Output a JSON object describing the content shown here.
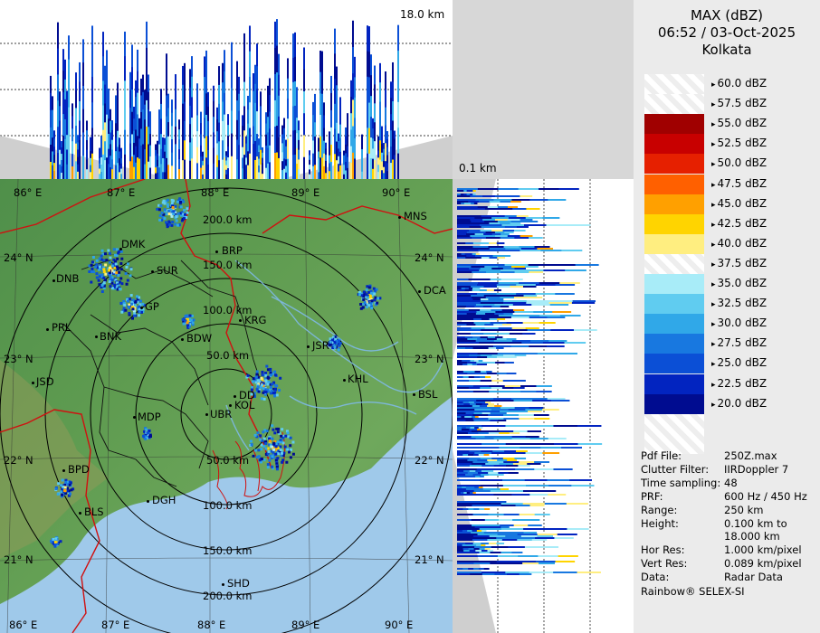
{
  "header": {
    "product": "MAX (dBZ)",
    "datetime": "06:52 / 03-Oct-2025",
    "station": "Kolkata"
  },
  "top_panel": {
    "height_label_top": "18.0 km",
    "height_label_bottom": "0.1 km"
  },
  "legend": [
    {
      "label": "60.0 dBZ",
      "color": "#f0f0f0"
    },
    {
      "label": "57.5 dBZ",
      "color": "#f5f5f5"
    },
    {
      "label": "55.0 dBZ",
      "color": "#a00000"
    },
    {
      "label": "52.5 dBZ",
      "color": "#c80000"
    },
    {
      "label": "50.0 dBZ",
      "color": "#e62000"
    },
    {
      "label": "47.5 dBZ",
      "color": "#ff6000"
    },
    {
      "label": "45.0 dBZ",
      "color": "#ffa000"
    },
    {
      "label": "42.5 dBZ",
      "color": "#ffd400"
    },
    {
      "label": "40.0 dBZ",
      "color": "#ffee80"
    },
    {
      "label": "37.5 dBZ",
      "color": "#fffde6"
    },
    {
      "label": "35.0 dBZ",
      "color": "#a8ecf8"
    },
    {
      "label": "32.5 dBZ",
      "color": "#60ccf0"
    },
    {
      "label": "30.0 dBZ",
      "color": "#30a8e8"
    },
    {
      "label": "27.5 dBZ",
      "color": "#1878e0"
    },
    {
      "label": "25.0 dBZ",
      "color": "#0b4fd6"
    },
    {
      "label": "22.5 dBZ",
      "color": "#0224c0"
    },
    {
      "label": "20.0 dBZ",
      "color": "#000c90"
    }
  ],
  "info": [
    {
      "key": "Pdf File:",
      "value": "250Z.max"
    },
    {
      "key": "Clutter Filter:",
      "value": "IIRDoppler 7"
    },
    {
      "key": "Time sampling:",
      "value": "48"
    },
    {
      "key": "PRF:",
      "value": "600 Hz / 450 Hz"
    },
    {
      "key": "Range:",
      "value": "250 km"
    },
    {
      "key": "Height:",
      "value": "0.100 km to"
    },
    {
      "key": "",
      "value": "18.000 km"
    },
    {
      "key": "Hor Res:",
      "value": "1.000 km/pixel"
    },
    {
      "key": "Vert Res:",
      "value": "0.089 km/pixel"
    },
    {
      "key": "Data:",
      "value": "Radar Data"
    }
  ],
  "footer": "Rainbow® SELEX-SI",
  "map": {
    "lon_labels_top": [
      "86° E",
      "87° E",
      "88° E",
      "89° E",
      "90° E"
    ],
    "lon_labels_bottom": [
      "86° E",
      "87° E",
      "88° E",
      "89° E",
      "90° E"
    ],
    "lat_labels_left": [
      "24° N",
      "23° N",
      "22° N",
      "21° N"
    ],
    "lat_labels_right": [
      "24° N",
      "23° N",
      "22° N",
      "21° N"
    ],
    "range_labels": [
      "200.0 km",
      "150.0 km",
      "100.0 km",
      "50.0 km",
      "50.0 km",
      "100.0 km",
      "150.0 km",
      "200.0 km"
    ],
    "cities": [
      "MNS",
      "BRP",
      "DMK",
      "SUR",
      "DNB",
      "DCA",
      "PRL",
      "GP",
      "KRG",
      "BNK",
      "BDW",
      "JSR",
      "JSD",
      "KHL",
      "DD",
      "KOL",
      "BSL",
      "MDP",
      "UBR",
      "BPD",
      "DGH",
      "BLS",
      "SHD"
    ]
  }
}
